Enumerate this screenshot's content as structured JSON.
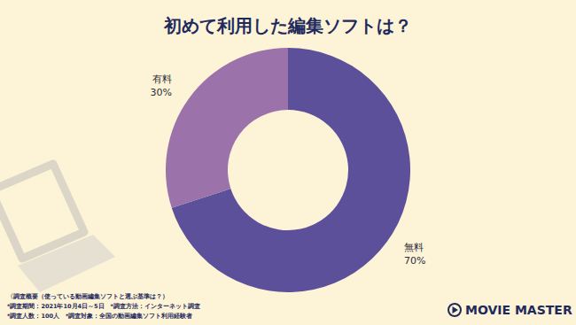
{
  "chart_data": {
    "type": "pie",
    "title": "初めて利用した編集ソフトは？",
    "categories": [
      "無料",
      "有料"
    ],
    "values": [
      70,
      30
    ],
    "value_labels": [
      "70%",
      "30%"
    ],
    "colors": [
      "#5c509a",
      "#9b72a9"
    ],
    "data_labels": true,
    "annotations": [
      "〈調査概要（使っている動画編集ソフトと選ぶ基準は？）",
      "*調査期間：2021年10月4日～5日　*調査方法：インターネット調査",
      "*調査人数：100人　*調査対象：全国の動画編集ソフト利用経験者"
    ],
    "brand": "MOVIE MASTER"
  }
}
